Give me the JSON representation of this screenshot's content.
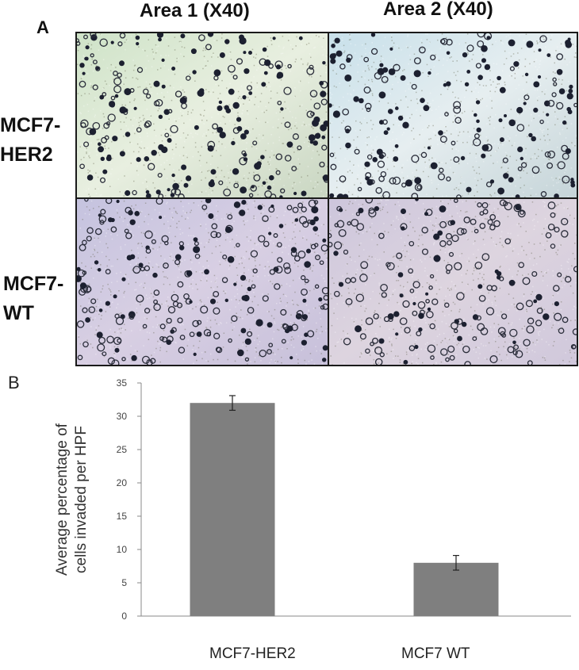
{
  "panel_a": {
    "label": "A",
    "columns": [
      "Area 1 (X40)",
      "Area 2 (X40)"
    ],
    "rows": [
      {
        "line1": "MCF7-",
        "line2": "HER2"
      },
      {
        "line1": "MCF7-",
        "line2": "WT"
      }
    ]
  },
  "panel_b": {
    "label": "B"
  },
  "chart_data": {
    "type": "bar",
    "categories": [
      "MCF7-HER2",
      "MCF7 WT"
    ],
    "values": [
      32,
      8
    ],
    "error": [
      1.1,
      1.1
    ],
    "ylabel": "Average percentage  of cells invaded per HPF",
    "ylabel_lines": [
      "Average percentage  of",
      "cells invaded per HPF"
    ],
    "ylim": [
      0,
      35
    ],
    "yticks": [
      0,
      5,
      10,
      15,
      20,
      25,
      30,
      35
    ],
    "bar_color": "#7f7f7f",
    "grid": false
  }
}
